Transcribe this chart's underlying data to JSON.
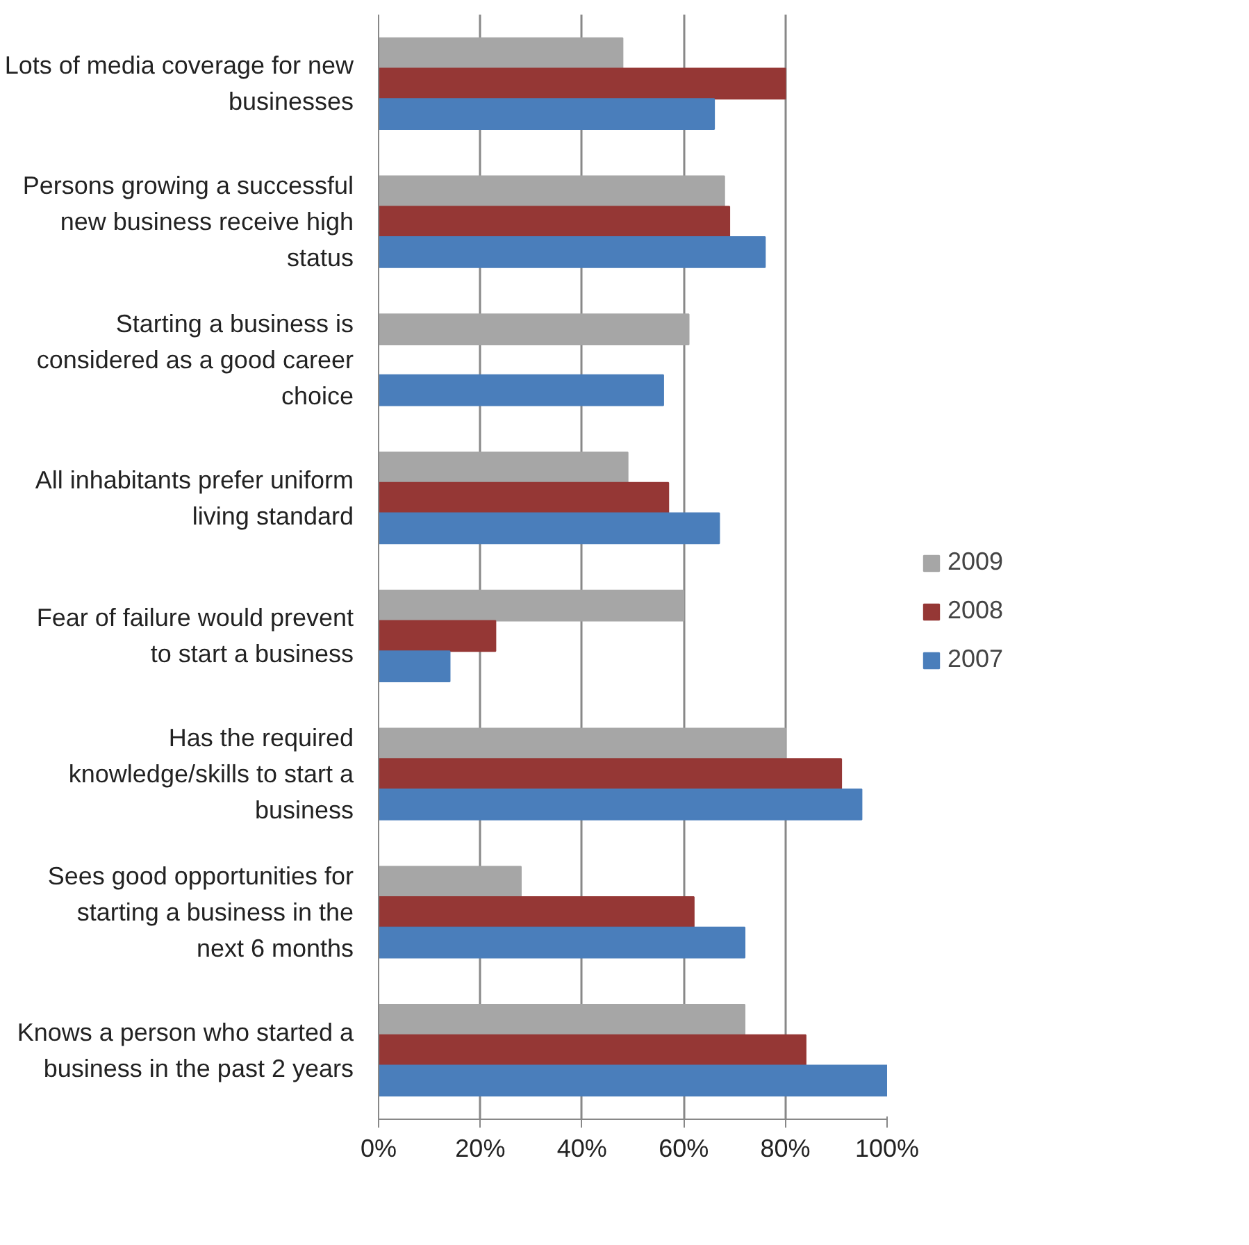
{
  "chart_data": {
    "type": "bar",
    "orientation": "horizontal",
    "categories": [
      "Lots of media coverage for new businesses",
      "Persons growing a successful new business receive high status",
      "Starting a business is considered as a good career choice",
      "All inhabitants prefer uniform living standard",
      "Fear of failure would prevent to start a business",
      "Has the required knowledge/skills to start a business",
      "Sees good opportunities for starting a business in the next 6 months",
      "Knows a person who started a business in the past 2 years"
    ],
    "series": [
      {
        "name": "2009",
        "color": "#a6a6a6",
        "values": [
          48,
          68,
          61,
          49,
          60,
          80,
          28,
          72
        ]
      },
      {
        "name": "2008",
        "color": "#953735",
        "values": [
          80,
          69,
          null,
          57,
          23,
          91,
          62,
          84
        ]
      },
      {
        "name": "2007",
        "color": "#4a7ebb",
        "values": [
          66,
          76,
          56,
          67,
          14,
          95,
          72,
          100
        ]
      }
    ],
    "xlim": [
      0,
      100
    ],
    "xticks": [
      {
        "value": 0,
        "label": "0%"
      },
      {
        "value": 20,
        "label": "20%"
      },
      {
        "value": 40,
        "label": "40%"
      },
      {
        "value": 60,
        "label": "60%"
      },
      {
        "value": 80,
        "label": "80%"
      },
      {
        "value": 100,
        "label": "100%"
      }
    ],
    "grid": "x",
    "legend": "right"
  }
}
